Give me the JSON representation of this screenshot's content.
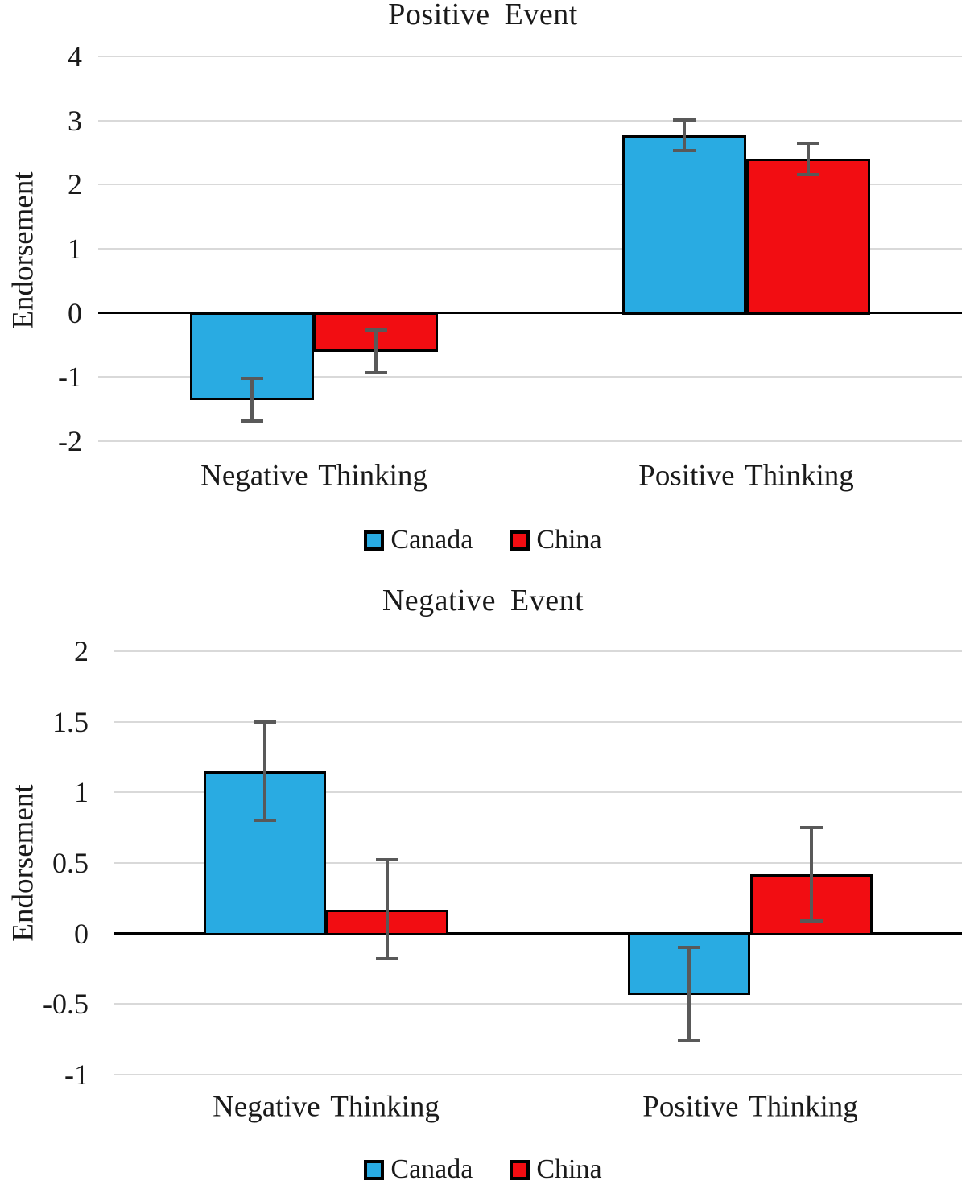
{
  "chart_data": [
    {
      "type": "bar",
      "title": "Positive Event",
      "ylabel": "Endorsement",
      "categories": [
        "Negative Thinking",
        "Positive Thinking"
      ],
      "yticks": [
        "4",
        "3",
        "2",
        "1",
        "0",
        "-1",
        "-2"
      ],
      "ymin": -2,
      "ymax": 4,
      "grid": true,
      "legend_position": "bottom",
      "series": [
        {
          "name": "Canada",
          "color": "#29abe2",
          "values": [
            -1.35,
            2.77
          ],
          "errors": [
            0.33,
            0.24
          ]
        },
        {
          "name": "China",
          "color": "#f20d12",
          "values": [
            -0.6,
            2.4
          ],
          "errors": [
            0.33,
            0.24
          ]
        }
      ]
    },
    {
      "type": "bar",
      "title": "Negative Event",
      "ylabel": "Endorsement",
      "categories": [
        "Negative Thinking",
        "Positive Thinking"
      ],
      "yticks": [
        "2",
        "1.5",
        "1",
        "0.5",
        "0",
        "-0.5",
        "-1"
      ],
      "ymin": -1,
      "ymax": 2,
      "grid": true,
      "legend_position": "bottom",
      "series": [
        {
          "name": "Canada",
          "color": "#29abe2",
          "values": [
            1.15,
            -0.43
          ],
          "errors": [
            0.35,
            0.33
          ]
        },
        {
          "name": "China",
          "color": "#f20d12",
          "values": [
            0.17,
            0.42
          ],
          "errors": [
            0.35,
            0.33
          ]
        }
      ]
    }
  ],
  "colors": {
    "canada_bar": "#29abe2",
    "china_bar": "#f20d12",
    "error_bar": "#595959",
    "gridline": "#d9d9d9",
    "axis_line": "#000000"
  }
}
